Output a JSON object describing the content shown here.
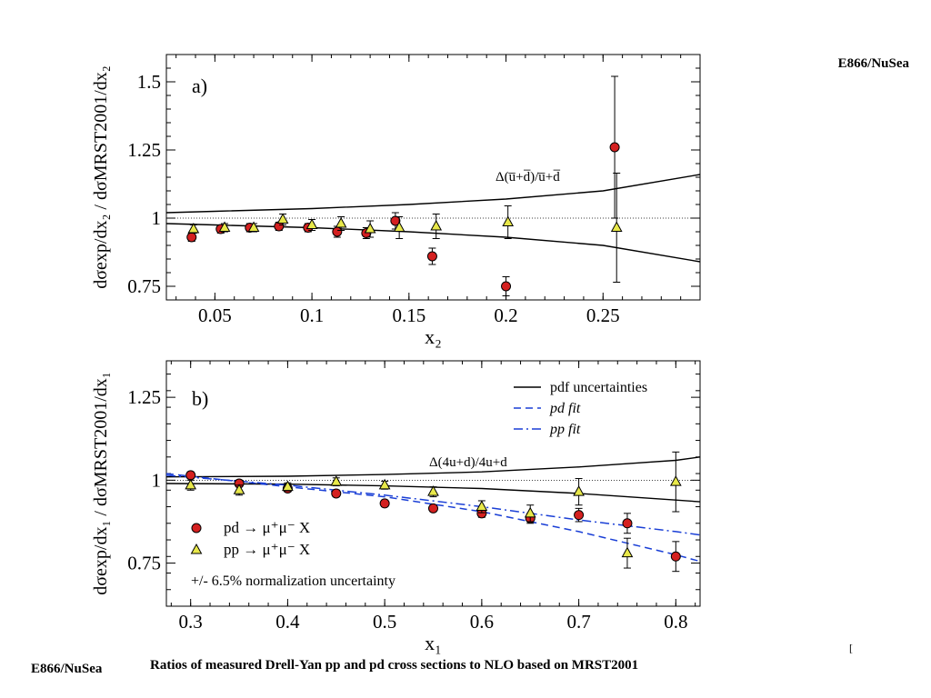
{
  "header": {
    "top_right_label": "E866/NuSea"
  },
  "footer": {
    "left_label": "E866/NuSea",
    "caption": "Ratios of measured Drell-Yan pp and pd cross sections to NLO based on MRST2001",
    "tick_mark": "["
  },
  "chart_data": [
    {
      "type": "scatter",
      "panel_label": "a)",
      "xlabel": "x₂",
      "ylabel": "dσexp/dx₂ / dσMRST2001/dx₂",
      "xlim": [
        0.025,
        0.3
      ],
      "ylim": [
        0.7,
        1.6
      ],
      "xticks": [
        "0.05",
        "0.1",
        "0.15",
        "0.2",
        "0.25"
      ],
      "yticks": [
        "0.75",
        "1",
        "1.25",
        "1.5"
      ],
      "reference_line": 1.0,
      "curve_label": "Δ(u̅+d̅)/u̅+d̅",
      "band": {
        "x": [
          0.025,
          0.05,
          0.1,
          0.15,
          0.2,
          0.25,
          0.3
        ],
        "upper": [
          1.02,
          1.025,
          1.035,
          1.05,
          1.07,
          1.1,
          1.16
        ],
        "lower": [
          0.98,
          0.975,
          0.965,
          0.95,
          0.93,
          0.9,
          0.84
        ]
      },
      "series": [
        {
          "name": "pd",
          "marker": "circle",
          "color": "#d42020",
          "x": [
            0.038,
            0.053,
            0.068,
            0.083,
            0.098,
            0.113,
            0.128,
            0.143,
            0.162,
            0.2,
            0.256
          ],
          "y": [
            0.93,
            0.96,
            0.965,
            0.97,
            0.965,
            0.95,
            0.945,
            0.99,
            0.86,
            0.75,
            1.26
          ],
          "err": [
            0.015,
            0.015,
            0.015,
            0.015,
            0.015,
            0.02,
            0.02,
            0.03,
            0.03,
            0.035,
            0.26
          ]
        },
        {
          "name": "pp",
          "marker": "triangle",
          "color": "#e8e84a",
          "x": [
            0.039,
            0.055,
            0.07,
            0.085,
            0.1,
            0.115,
            0.13,
            0.145,
            0.164,
            0.201,
            0.257
          ],
          "y": [
            0.96,
            0.965,
            0.965,
            0.995,
            0.975,
            0.98,
            0.96,
            0.965,
            0.97,
            0.985,
            0.965
          ],
          "err": [
            0.015,
            0.015,
            0.015,
            0.02,
            0.02,
            0.025,
            0.03,
            0.04,
            0.045,
            0.06,
            0.2
          ]
        }
      ]
    },
    {
      "type": "scatter",
      "panel_label": "b)",
      "xlabel": "x₁",
      "ylabel": "dσexp/dx₁ / dσMRST2001/dx₁",
      "xlim": [
        0.275,
        0.825
      ],
      "ylim": [
        0.62,
        1.36
      ],
      "xticks": [
        "0.3",
        "0.4",
        "0.5",
        "0.6",
        "0.7",
        "0.8"
      ],
      "yticks": [
        "0.75",
        "1",
        "1.25"
      ],
      "reference_line": 1.0,
      "curve_label": "Δ(4u+d)/4u+d",
      "legend": [
        {
          "label": "pdf uncertainties",
          "style": "solid"
        },
        {
          "label": "pd fit",
          "style": "dashed"
        },
        {
          "label": "pp fit",
          "style": "dashdot"
        }
      ],
      "marker_legend": [
        {
          "label": "pd → μ⁺μ⁻ X",
          "marker": "circle"
        },
        {
          "label": "pp → μ⁺μ⁻ X",
          "marker": "triangle"
        }
      ],
      "note": "+/- 6.5% normalization uncertainty",
      "band": {
        "x": [
          0.275,
          0.4,
          0.5,
          0.6,
          0.7,
          0.8,
          0.825
        ],
        "upper": [
          1.01,
          1.012,
          1.017,
          1.025,
          1.04,
          1.06,
          1.07
        ],
        "lower": [
          0.99,
          0.988,
          0.983,
          0.975,
          0.96,
          0.94,
          0.935
        ]
      },
      "fits": [
        {
          "name": "pd fit",
          "x": [
            0.275,
            0.4,
            0.5,
            0.6,
            0.7,
            0.8,
            0.825
          ],
          "y": [
            1.02,
            0.98,
            0.95,
            0.905,
            0.845,
            0.775,
            0.755
          ]
        },
        {
          "name": "pp fit",
          "x": [
            0.275,
            0.4,
            0.5,
            0.6,
            0.7,
            0.8,
            0.825
          ],
          "y": [
            1.015,
            0.985,
            0.955,
            0.92,
            0.88,
            0.845,
            0.835
          ]
        }
      ],
      "series": [
        {
          "name": "pd",
          "marker": "circle",
          "color": "#d42020",
          "x": [
            0.3,
            0.35,
            0.4,
            0.45,
            0.5,
            0.55,
            0.6,
            0.65,
            0.7,
            0.75,
            0.8
          ],
          "y": [
            1.015,
            0.99,
            0.975,
            0.96,
            0.93,
            0.915,
            0.9,
            0.885,
            0.895,
            0.87,
            0.77
          ],
          "err": [
            0.01,
            0.01,
            0.01,
            0.01,
            0.01,
            0.01,
            0.012,
            0.015,
            0.02,
            0.03,
            0.045
          ]
        },
        {
          "name": "pp",
          "marker": "triangle",
          "color": "#e8e84a",
          "x": [
            0.3,
            0.35,
            0.4,
            0.45,
            0.5,
            0.55,
            0.6,
            0.65,
            0.7,
            0.75,
            0.8
          ],
          "y": [
            0.985,
            0.97,
            0.98,
            0.995,
            0.985,
            0.965,
            0.92,
            0.9,
            0.965,
            0.78,
            0.995
          ],
          "err": [
            0.015,
            0.015,
            0.012,
            0.012,
            0.012,
            0.015,
            0.018,
            0.025,
            0.04,
            0.045,
            0.09
          ]
        }
      ]
    }
  ]
}
